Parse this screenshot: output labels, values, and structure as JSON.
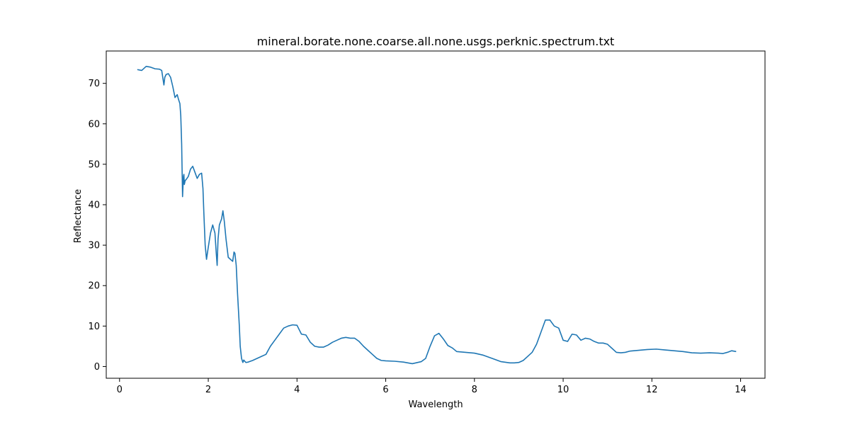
{
  "chart_data": {
    "type": "line",
    "title": "mineral.borate.none.coarse.all.none.usgs.perknic.spectrum.txt",
    "xlabel": "Wavelength",
    "ylabel": "Reflectance",
    "xlim": [
      -0.3,
      14.55
    ],
    "ylim": [
      -2.9,
      78.0
    ],
    "xticks": [
      0,
      2,
      4,
      6,
      8,
      10,
      12,
      14
    ],
    "yticks": [
      0,
      10,
      20,
      30,
      40,
      50,
      60,
      70
    ],
    "grid": false,
    "legend": "none",
    "series": [
      {
        "color": "#1f77b4",
        "x": [
          0.4,
          0.5,
          0.6,
          0.7,
          0.8,
          0.9,
          0.95,
          1.0,
          1.02,
          1.05,
          1.1,
          1.15,
          1.2,
          1.25,
          1.3,
          1.33,
          1.36,
          1.38,
          1.4,
          1.42,
          1.44,
          1.45,
          1.46,
          1.48,
          1.5,
          1.55,
          1.6,
          1.65,
          1.7,
          1.75,
          1.8,
          1.85,
          1.88,
          1.9,
          1.93,
          1.96,
          2.0,
          2.05,
          2.1,
          2.15,
          2.18,
          2.2,
          2.22,
          2.25,
          2.3,
          2.33,
          2.36,
          2.4,
          2.45,
          2.5,
          2.55,
          2.58,
          2.6,
          2.63,
          2.66,
          2.7,
          2.72,
          2.75,
          2.78,
          2.8,
          2.83,
          2.85,
          2.9,
          3.0,
          3.1,
          3.2,
          3.3,
          3.4,
          3.5,
          3.6,
          3.7,
          3.8,
          3.9,
          4.0,
          4.1,
          4.2,
          4.3,
          4.4,
          4.5,
          4.6,
          4.7,
          4.8,
          4.9,
          5.0,
          5.1,
          5.2,
          5.3,
          5.4,
          5.5,
          5.6,
          5.7,
          5.8,
          5.9,
          6.0,
          6.2,
          6.4,
          6.6,
          6.8,
          6.9,
          7.0,
          7.1,
          7.2,
          7.3,
          7.4,
          7.5,
          7.6,
          7.8,
          8.0,
          8.2,
          8.4,
          8.6,
          8.8,
          8.9,
          9.0,
          9.1,
          9.2,
          9.3,
          9.4,
          9.5,
          9.6,
          9.7,
          9.8,
          9.9,
          10.0,
          10.1,
          10.2,
          10.3,
          10.4,
          10.5,
          10.6,
          10.7,
          10.8,
          10.9,
          11.0,
          11.1,
          11.2,
          11.3,
          11.4,
          11.5,
          11.7,
          11.9,
          12.1,
          12.3,
          12.5,
          12.7,
          12.9,
          13.1,
          13.3,
          13.5,
          13.6,
          13.7,
          13.8,
          13.9
        ],
        "y": [
          73.4,
          73.2,
          74.2,
          74.0,
          73.6,
          73.5,
          73.2,
          69.6,
          71.5,
          72.2,
          72.4,
          71.5,
          69.2,
          66.5,
          67.2,
          66.0,
          65.0,
          62.0,
          55.0,
          42.0,
          47.0,
          47.5,
          45.0,
          46.0,
          46.2,
          47.0,
          48.8,
          49.5,
          48.0,
          46.5,
          47.5,
          47.8,
          44.0,
          38.0,
          30.0,
          26.5,
          29.5,
          33.0,
          35.0,
          33.0,
          28.0,
          25.0,
          31.5,
          35.0,
          36.5,
          38.5,
          36.0,
          31.5,
          27.0,
          26.5,
          26.0,
          28.3,
          28.0,
          25.0,
          18.0,
          10.0,
          5.0,
          2.0,
          1.0,
          1.6,
          1.2,
          1.0,
          1.1,
          1.5,
          2.0,
          2.5,
          3.0,
          5.0,
          6.5,
          8.0,
          9.5,
          10.0,
          10.3,
          10.2,
          8.0,
          7.8,
          6.0,
          5.0,
          4.8,
          4.8,
          5.3,
          6.0,
          6.5,
          7.0,
          7.2,
          7.0,
          7.0,
          6.2,
          5.0,
          4.0,
          3.0,
          2.0,
          1.5,
          1.4,
          1.3,
          1.1,
          0.7,
          1.2,
          2.0,
          5.0,
          7.6,
          8.2,
          6.8,
          5.2,
          4.6,
          3.7,
          3.5,
          3.3,
          2.8,
          2.0,
          1.2,
          0.9,
          0.9,
          1.0,
          1.5,
          2.5,
          3.5,
          5.5,
          8.5,
          11.5,
          11.5,
          10.0,
          9.5,
          6.5,
          6.2,
          8.0,
          7.8,
          6.5,
          7.0,
          6.8,
          6.2,
          5.8,
          5.8,
          5.5,
          4.5,
          3.5,
          3.4,
          3.5,
          3.8,
          4.0,
          4.2,
          4.3,
          4.1,
          3.9,
          3.7,
          3.4,
          3.3,
          3.4,
          3.3,
          3.2,
          3.5,
          3.9,
          3.7
        ]
      }
    ]
  }
}
